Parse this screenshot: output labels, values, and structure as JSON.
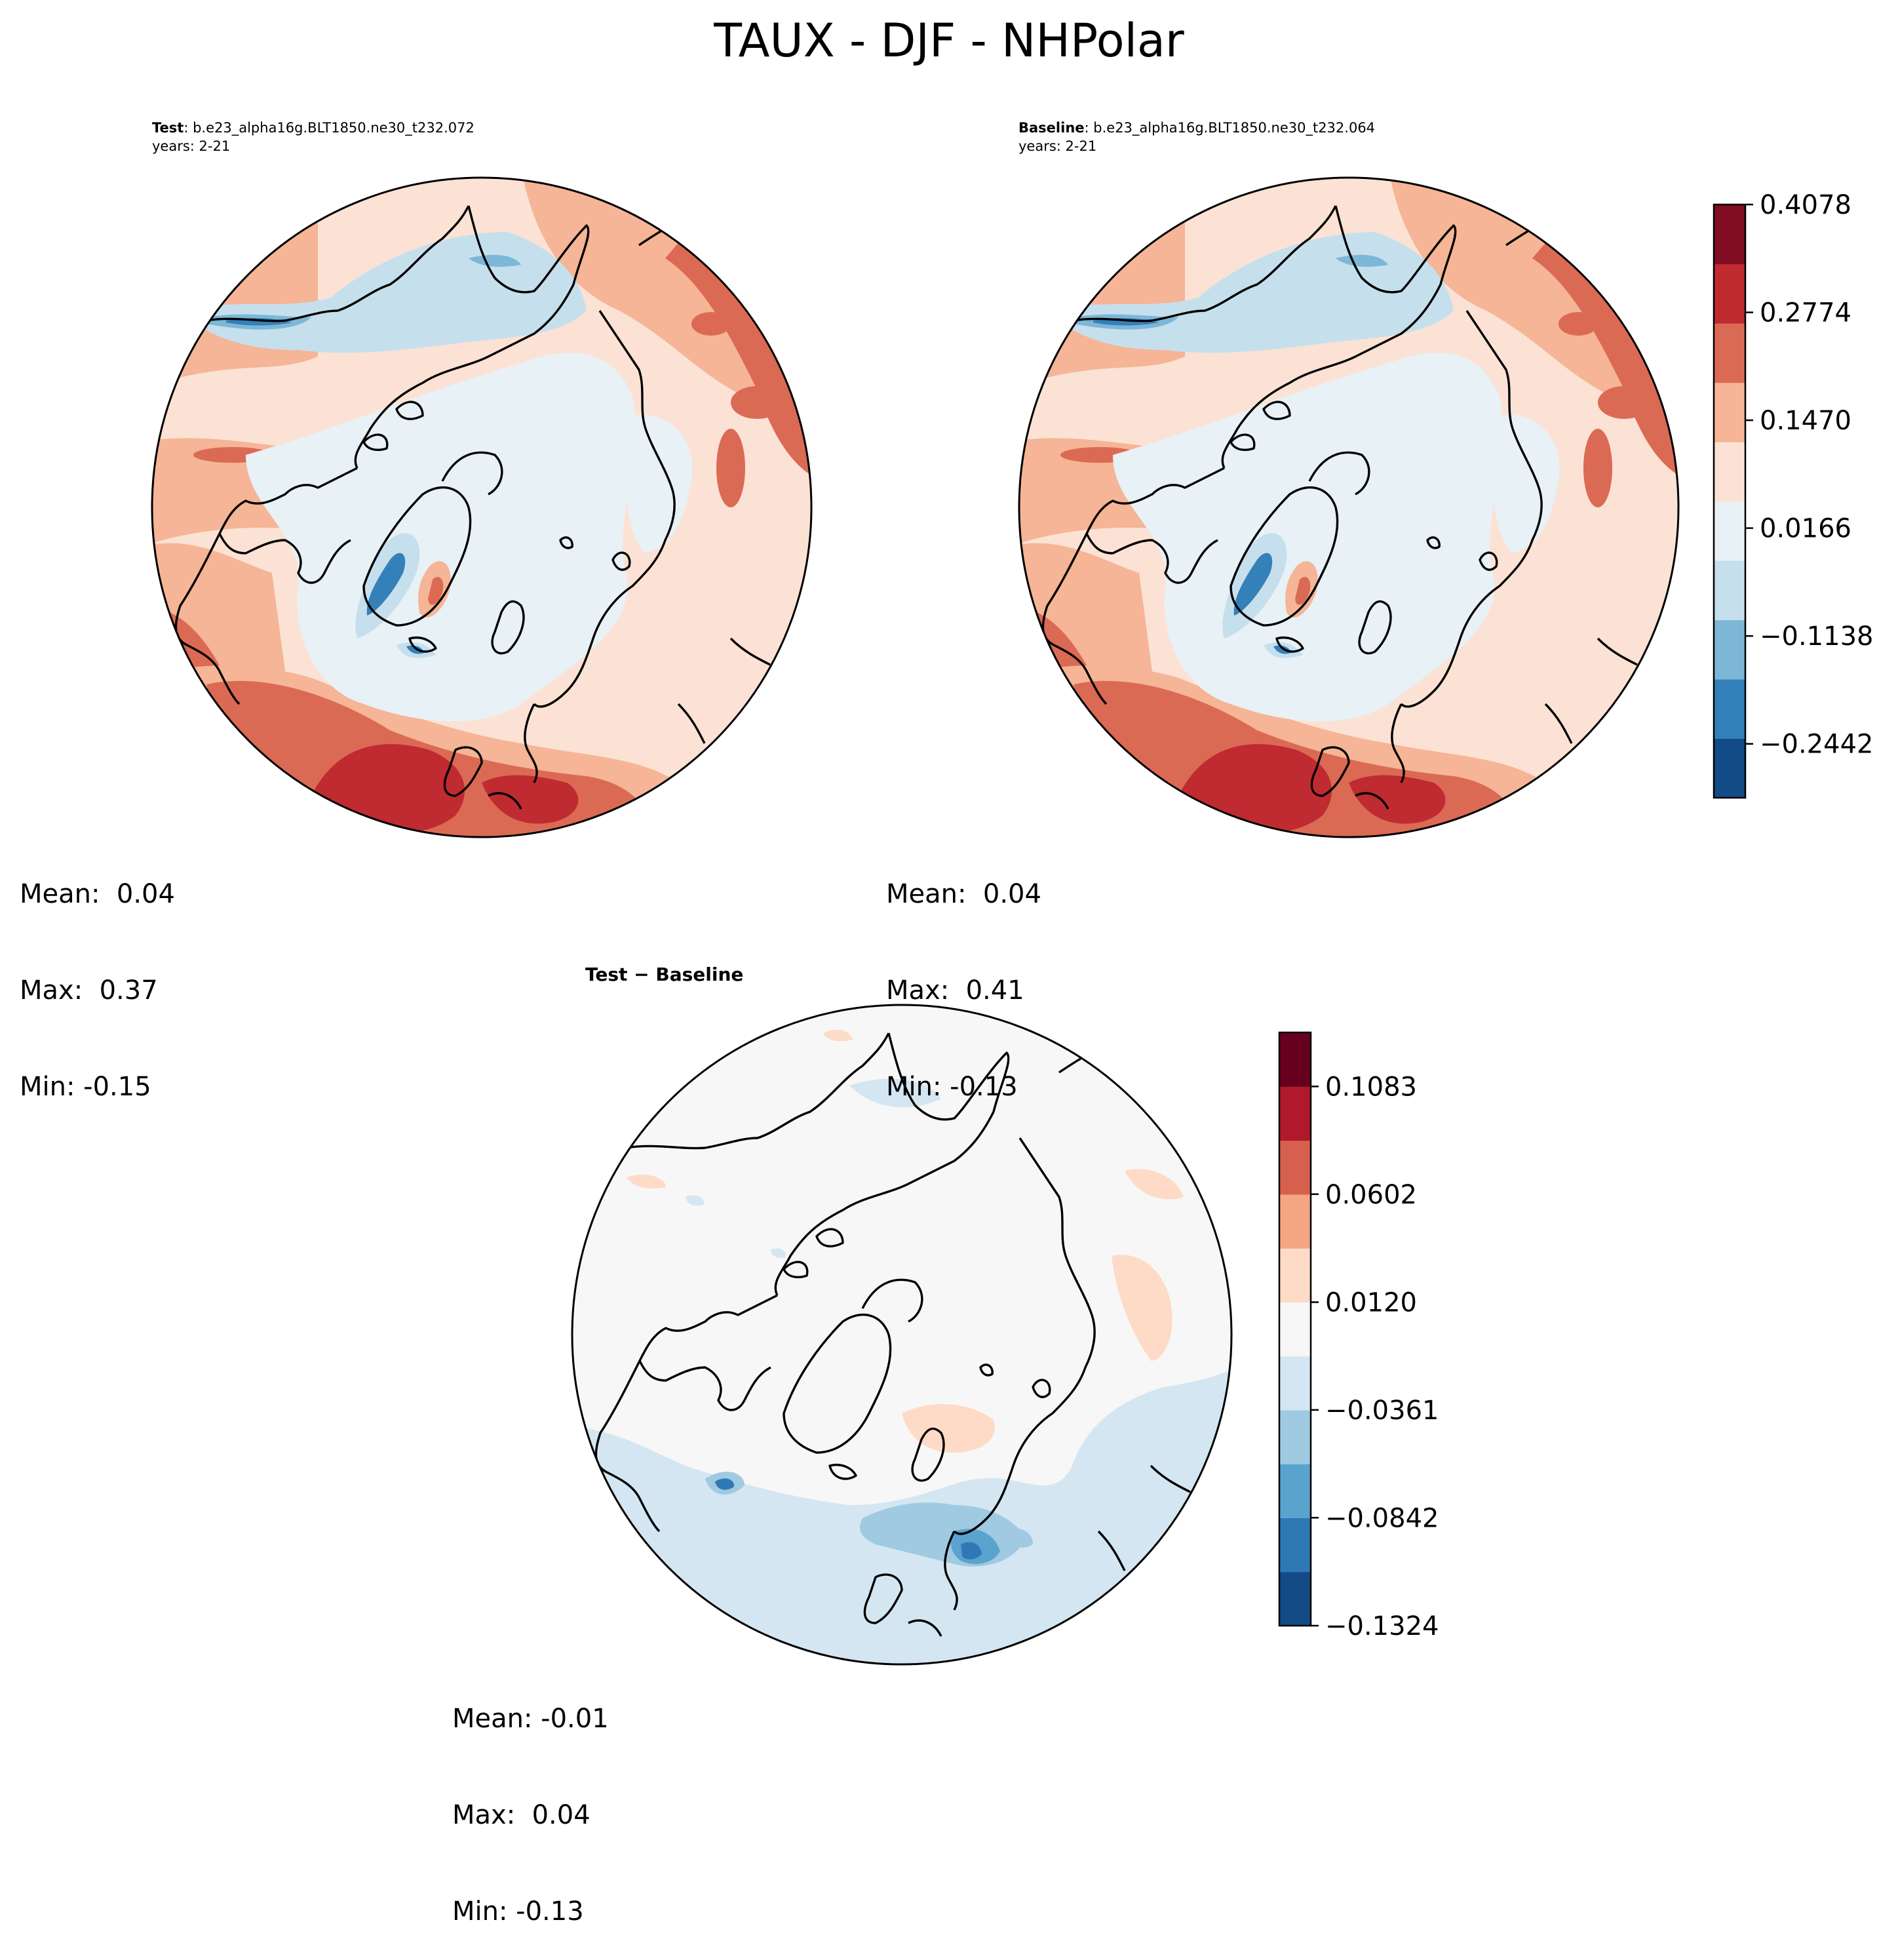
{
  "title": "TAUX - DJF - NHPolar",
  "colors": {
    "main": [
      "#134b87",
      "#3480b9",
      "#7db7d7",
      "#c6dfed",
      "#e8f1f5",
      "#fbe2d5",
      "#f5b596",
      "#db6a55",
      "#c02a31",
      "#810d22"
    ],
    "diff": [
      "#134b87",
      "#2e78b5",
      "#5ba3cf",
      "#a0cae1",
      "#d4e6f1",
      "#f7f7f7",
      "#fddbc7",
      "#f4a582",
      "#d6604d",
      "#b2182b",
      "#67001f"
    ],
    "land_outline": "#000000"
  },
  "panels": {
    "test": {
      "label_bold": "Test",
      "label_rest": ": b.e23_alpha16g.BLT1850.ne30_t232.072",
      "years": "years: 2-21",
      "mean_label": "Mean:  0.04",
      "max_label": "Max:  0.37",
      "min_label": "Min: -0.15"
    },
    "baseline": {
      "label_bold": "Baseline",
      "label_rest": ": b.e23_alpha16g.BLT1850.ne30_t232.064",
      "years": "years: 2-21",
      "mean_label": "Mean:  0.04",
      "max_label": "Max:  0.41",
      "min_label": "Min: -0.13"
    },
    "diff": {
      "label": "Test − Baseline",
      "mean_label": "Mean: -0.01",
      "max_label": "Max:  0.04",
      "min_label": "Min: -0.13"
    }
  },
  "chart_data": [
    {
      "type": "heatmap",
      "panel": "test",
      "projection": "north polar stereographic",
      "variable": "TAUX",
      "season": "DJF",
      "stats": {
        "mean": 0.04,
        "max": 0.37,
        "min": -0.15
      }
    },
    {
      "type": "heatmap",
      "panel": "baseline",
      "projection": "north polar stereographic",
      "variable": "TAUX",
      "season": "DJF",
      "stats": {
        "mean": 0.04,
        "max": 0.41,
        "min": -0.13
      }
    },
    {
      "type": "heatmap",
      "panel": "diff",
      "projection": "north polar stereographic",
      "variable": "TAUX",
      "season": "DJF",
      "stats": {
        "mean": -0.01,
        "max": 0.04,
        "min": -0.13
      }
    }
  ],
  "colorbars": {
    "main": {
      "range": [
        -0.3094,
        0.4078
      ],
      "ticks": [
        -0.2442,
        -0.1138,
        0.0166,
        0.147,
        0.2774,
        0.4078
      ],
      "tick_labels": [
        "−0.2442",
        "−0.1138",
        "0.0166",
        "0.1470",
        "0.2774",
        "0.4078"
      ]
    },
    "diff": {
      "range": [
        -0.1324,
        0.1324
      ],
      "ticks": [
        -0.1324,
        -0.0842,
        -0.0361,
        0.012,
        0.0602,
        0.1083
      ],
      "tick_labels": [
        "−0.1324",
        "−0.0842",
        "−0.0361",
        "0.0120",
        "0.0602",
        "0.1083"
      ]
    }
  }
}
